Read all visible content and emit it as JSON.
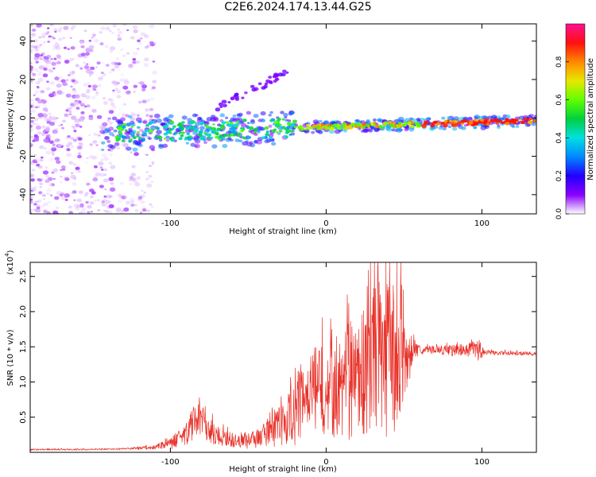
{
  "title": "C2E6.2024.174.13.44.G25",
  "colors": {
    "snr_line": "#e8322a",
    "axis": "#000000",
    "background": "#ffffff"
  },
  "chart_data": [
    {
      "type": "heatmap",
      "xlabel": "Height of straight line (km)",
      "ylabel": "Frequency (Hz)",
      "xlim": [
        -190,
        135
      ],
      "ylim": [
        -50,
        49
      ],
      "x_ticks": [
        -100,
        0,
        100
      ],
      "x_tick_labels": [
        "-100",
        "0",
        "100"
      ],
      "y_ticks": [
        -40,
        -20,
        0,
        20,
        40
      ],
      "y_tick_labels": [
        "-40",
        "-20",
        "0",
        "20",
        "40"
      ],
      "colorbar": {
        "label": "Normalized spectral amplitude",
        "range": [
          0,
          1
        ],
        "ticks": [
          0.0,
          0.2,
          0.4,
          0.6,
          0.8
        ],
        "tick_labels": [
          "0.0",
          "0.2",
          "0.4",
          "0.6",
          "0.8"
        ],
        "colormap": [
          "#ffffff",
          "#8a00ff",
          "#2200ff",
          "#0088ff",
          "#00e0e0",
          "#00d040",
          "#60ff00",
          "#e8e800",
          "#ff8800",
          "#ff1010",
          "#ff1090"
        ]
      },
      "features": [
        {
          "name": "noise scatter",
          "x_range": [
            -190,
            -110
          ],
          "y_range": [
            -50,
            49
          ],
          "amplitude": 0.05
        },
        {
          "name": "main band",
          "x_range": [
            -145,
            135
          ],
          "center_frequency_hz": [
            -8,
            -1.5
          ],
          "amplitude_range": [
            0.1,
            0.9
          ]
        },
        {
          "name": "upper branch",
          "x_range": [
            -70,
            -25
          ],
          "y_range": [
            5,
            24
          ],
          "amplitude": 0.1
        }
      ],
      "grid": false
    },
    {
      "type": "line",
      "xlabel": "Height of straight line (km)",
      "ylabel": "SNR (10 * v/v)",
      "y_multiplier_label": "(x10",
      "y_multiplier_exponent": "4",
      "xlim": [
        -190,
        135
      ],
      "ylim": [
        0,
        2.7
      ],
      "x_ticks": [
        -100,
        0,
        100
      ],
      "x_tick_labels": [
        "-100",
        "0",
        "100"
      ],
      "y_ticks": [
        0.5,
        1.0,
        1.5,
        2.0,
        2.5
      ],
      "y_tick_labels": [
        "0.5",
        "1.0",
        "1.5",
        "2.0",
        "2.5"
      ],
      "grid": false,
      "series": [
        {
          "x": [
            -190,
            -170,
            -150,
            -130,
            -120,
            -110,
            -100,
            -95,
            -90,
            -85,
            -80,
            -75,
            -70,
            -65,
            -60,
            -55,
            -50,
            -45,
            -40,
            -35,
            -30,
            -25,
            -20,
            -15,
            -10,
            -5,
            0,
            5,
            10,
            15,
            20,
            25,
            30,
            35,
            40,
            45,
            50,
            55,
            60,
            70,
            80,
            90,
            95,
            100,
            101,
            105,
            110,
            120,
            130,
            135
          ],
          "y": [
            0.04,
            0.04,
            0.04,
            0.05,
            0.06,
            0.07,
            0.12,
            0.2,
            0.3,
            0.4,
            0.42,
            0.3,
            0.25,
            0.2,
            0.17,
            0.15,
            0.17,
            0.2,
            0.25,
            0.3,
            0.4,
            0.5,
            0.6,
            0.7,
            0.85,
            0.9,
            0.95,
            0.9,
            0.95,
            1.0,
            1.1,
            1.2,
            1.3,
            1.35,
            1.4,
            1.35,
            1.3,
            1.45,
            1.45,
            1.46,
            1.45,
            1.46,
            1.47,
            1.45,
            1.42,
            1.42,
            1.41,
            1.41,
            1.4,
            1.4
          ],
          "spread": [
            0.01,
            0.01,
            0.01,
            0.01,
            0.02,
            0.03,
            0.08,
            0.12,
            0.2,
            0.25,
            0.25,
            0.2,
            0.15,
            0.12,
            0.1,
            0.1,
            0.12,
            0.15,
            0.18,
            0.25,
            0.3,
            0.4,
            0.5,
            0.55,
            0.6,
            0.65,
            0.7,
            0.75,
            0.8,
            0.85,
            0.9,
            1.0,
            1.1,
            1.15,
            1.2,
            1.2,
            1.0,
            0.2,
            0.06,
            0.06,
            0.08,
            0.1,
            0.12,
            0.2,
            0.04,
            0.03,
            0.03,
            0.03,
            0.03,
            0.03
          ]
        }
      ]
    }
  ]
}
